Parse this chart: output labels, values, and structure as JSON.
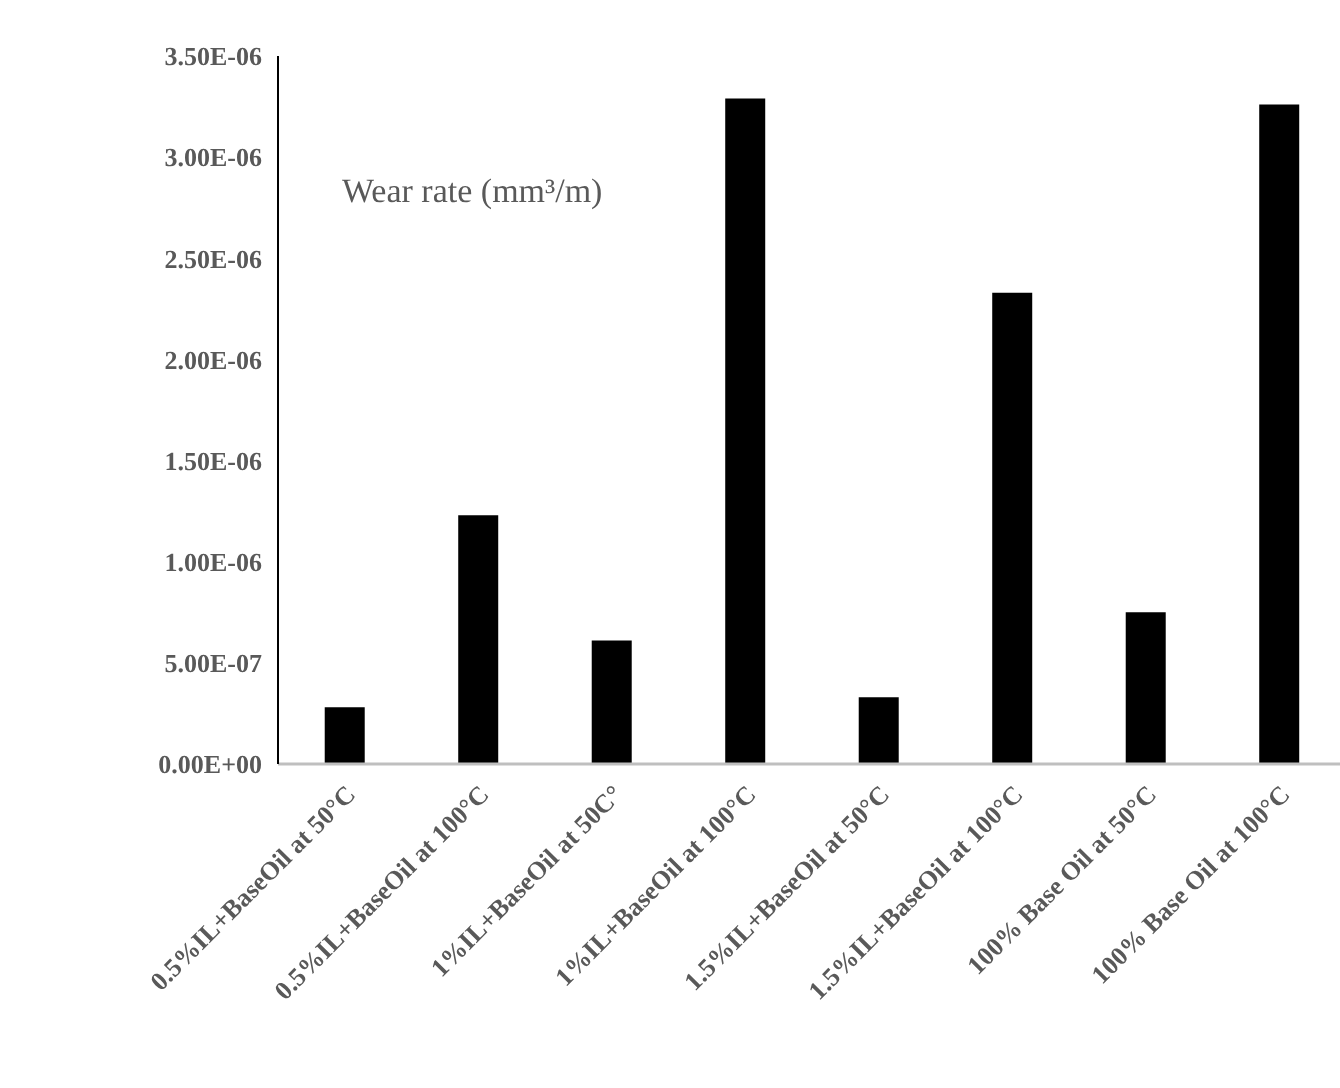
{
  "chart_data": {
    "type": "bar",
    "annotations": [
      "Wear rate (mm³/m)"
    ],
    "categories": [
      "0.5%IL+BaseOil at 50°C",
      "0.5%IL+BaseOil at 100°C",
      "1%IL+BaseOil at 50C°",
      "1%IL+BaseOil at 100°C",
      "1.5%IL+BaseOil at 50°C",
      "1.5%IL+BaseOil at 100°C",
      "100% Base Oil at 50°C",
      "100% Base Oil at 100°C"
    ],
    "values": [
      2.8e-07,
      1.23e-06,
      6.1e-07,
      3.29e-06,
      3.3e-07,
      2.33e-06,
      7.5e-07,
      3.26e-06
    ],
    "color": "#000000",
    "ylim": [
      0,
      3.5e-06
    ],
    "yticks": [
      {
        "value": 0,
        "label": "0.00E+00"
      },
      {
        "value": 5e-07,
        "label": "5.00E-07"
      },
      {
        "value": 1e-06,
        "label": "1.00E-06"
      },
      {
        "value": 1.5e-06,
        "label": "1.50E-06"
      },
      {
        "value": 2e-06,
        "label": "2.00E-06"
      },
      {
        "value": 2.5e-06,
        "label": "2.50E-06"
      },
      {
        "value": 3e-06,
        "label": "3.00E-06"
      },
      {
        "value": 3.5e-06,
        "label": "3.50E-06"
      }
    ],
    "grid": false,
    "legend": false
  }
}
